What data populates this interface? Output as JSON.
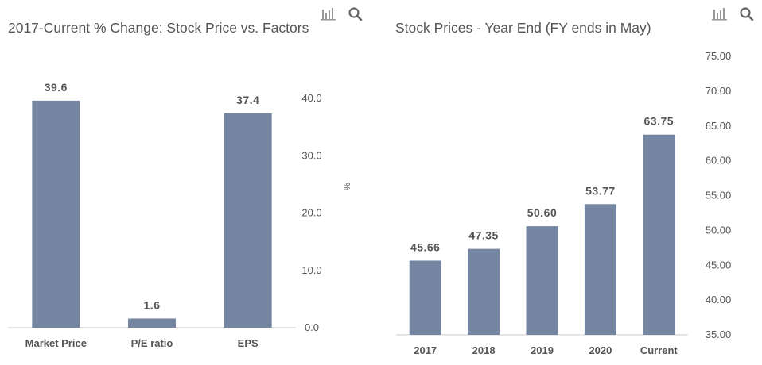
{
  "charts": [
    {
      "id": "left",
      "title": "2017-Current % Change: Stock Price vs. Factors",
      "toolbar": {
        "icons": [
          "bar-chart-icon",
          "search-icon"
        ]
      }
    },
    {
      "id": "right",
      "title": "Stock Prices - Year End (FY ends in May)",
      "toolbar": {
        "icons": [
          "bar-chart-icon",
          "search-icon"
        ]
      }
    }
  ],
  "colors": {
    "bar": "#7586a3",
    "axis": "#cccccc",
    "label": "#555555",
    "value": "#555555"
  },
  "chart_data": [
    {
      "type": "bar",
      "title": "2017-Current % Change: Stock Price vs. Factors",
      "categories": [
        "Market Price",
        "P/E ratio",
        "EPS"
      ],
      "values": [
        39.6,
        1.6,
        37.4
      ],
      "value_labels": [
        "39.6",
        "1.6",
        "37.4"
      ],
      "ylabel": "%",
      "ylim": [
        0,
        40
      ],
      "yticks": [
        "0.0",
        "10.0",
        "20.0",
        "30.0",
        "40.0"
      ],
      "yaxis_side": "right",
      "grid": false,
      "legend": "none"
    },
    {
      "type": "bar",
      "title": "Stock Prices - Year End (FY ends in May)",
      "categories": [
        "2017",
        "2018",
        "2019",
        "2020",
        "Current"
      ],
      "values": [
        45.66,
        47.35,
        50.6,
        53.77,
        63.75
      ],
      "value_labels": [
        "45.66",
        "47.35",
        "50.60",
        "53.77",
        "63.75"
      ],
      "ylabel": "",
      "ylim": [
        35,
        75
      ],
      "yticks": [
        "35.00",
        "40.00",
        "45.00",
        "50.00",
        "55.00",
        "60.00",
        "65.00",
        "70.00",
        "75.00"
      ],
      "yaxis_side": "right",
      "grid": false,
      "legend": "none"
    }
  ]
}
